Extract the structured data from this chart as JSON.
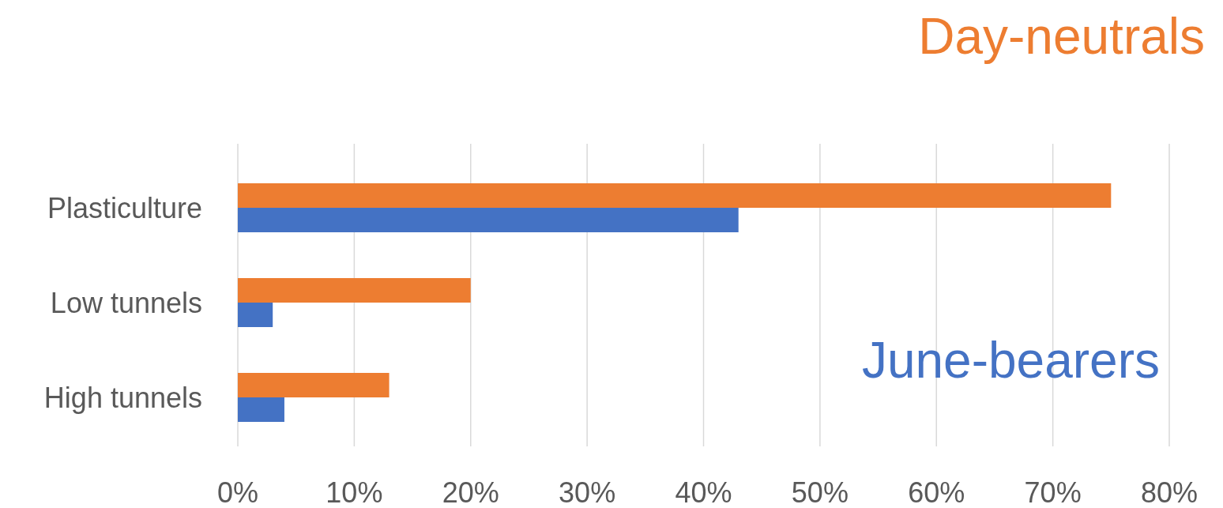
{
  "chart_data": {
    "type": "bar",
    "orientation": "horizontal",
    "categories": [
      "Plasticulture",
      "Low tunnels",
      "High tunnels"
    ],
    "series": [
      {
        "name": "Day-neutrals",
        "color": "#ed7d31",
        "values": [
          75,
          20,
          13
        ]
      },
      {
        "name": "June-bearers",
        "color": "#4472c4",
        "values": [
          43,
          3,
          4
        ]
      }
    ],
    "xlim": [
      0,
      80
    ],
    "xticks": [
      {
        "value": 0,
        "label": "0%"
      },
      {
        "value": 10,
        "label": "10%"
      },
      {
        "value": 20,
        "label": "20%"
      },
      {
        "value": 30,
        "label": "30%"
      },
      {
        "value": 40,
        "label": "40%"
      },
      {
        "value": 50,
        "label": "50%"
      },
      {
        "value": 60,
        "label": "60%"
      },
      {
        "value": 70,
        "label": "70%"
      },
      {
        "value": 80,
        "label": "80%"
      }
    ],
    "grid": "x",
    "legend": false
  }
}
